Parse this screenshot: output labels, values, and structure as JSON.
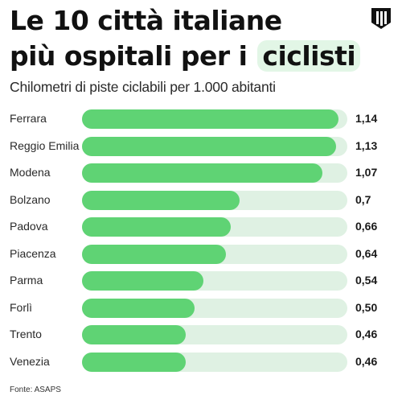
{
  "title": {
    "line1": "Le 10 città italiane",
    "line2_prefix": "più ospitali per i",
    "line2_highlight": "ciclisti"
  },
  "subtitle": "Chilometri di piste ciclabili per 1.000 abitanti",
  "source": "Fonte: ASAPS",
  "logo": "publisher-logo-icon",
  "colors": {
    "bar": "#5fd374",
    "track": "#dff1e3",
    "highlight": "#e2f6e6"
  },
  "chart_data": {
    "type": "bar",
    "orientation": "horizontal",
    "title": "Le 10 città italiane più ospitali per i ciclisti",
    "subtitle": "Chilometri di piste ciclabili per 1.000 abitanti",
    "categories": [
      "Ferrara",
      "Reggio Emilia",
      "Modena",
      "Bolzano",
      "Padova",
      "Piacenza",
      "Parma",
      "Forlì",
      "Trento",
      "Venezia"
    ],
    "values": [
      1.14,
      1.13,
      1.07,
      0.7,
      0.66,
      0.64,
      0.54,
      0.5,
      0.46,
      0.46
    ],
    "value_labels": [
      "1,14",
      "1,13",
      "1,07",
      "0,7",
      "0,66",
      "0,64",
      "0,54",
      "0,50",
      "0,46",
      "0,46"
    ],
    "xlim": [
      0,
      1.18
    ],
    "grid": false,
    "legend": false
  }
}
